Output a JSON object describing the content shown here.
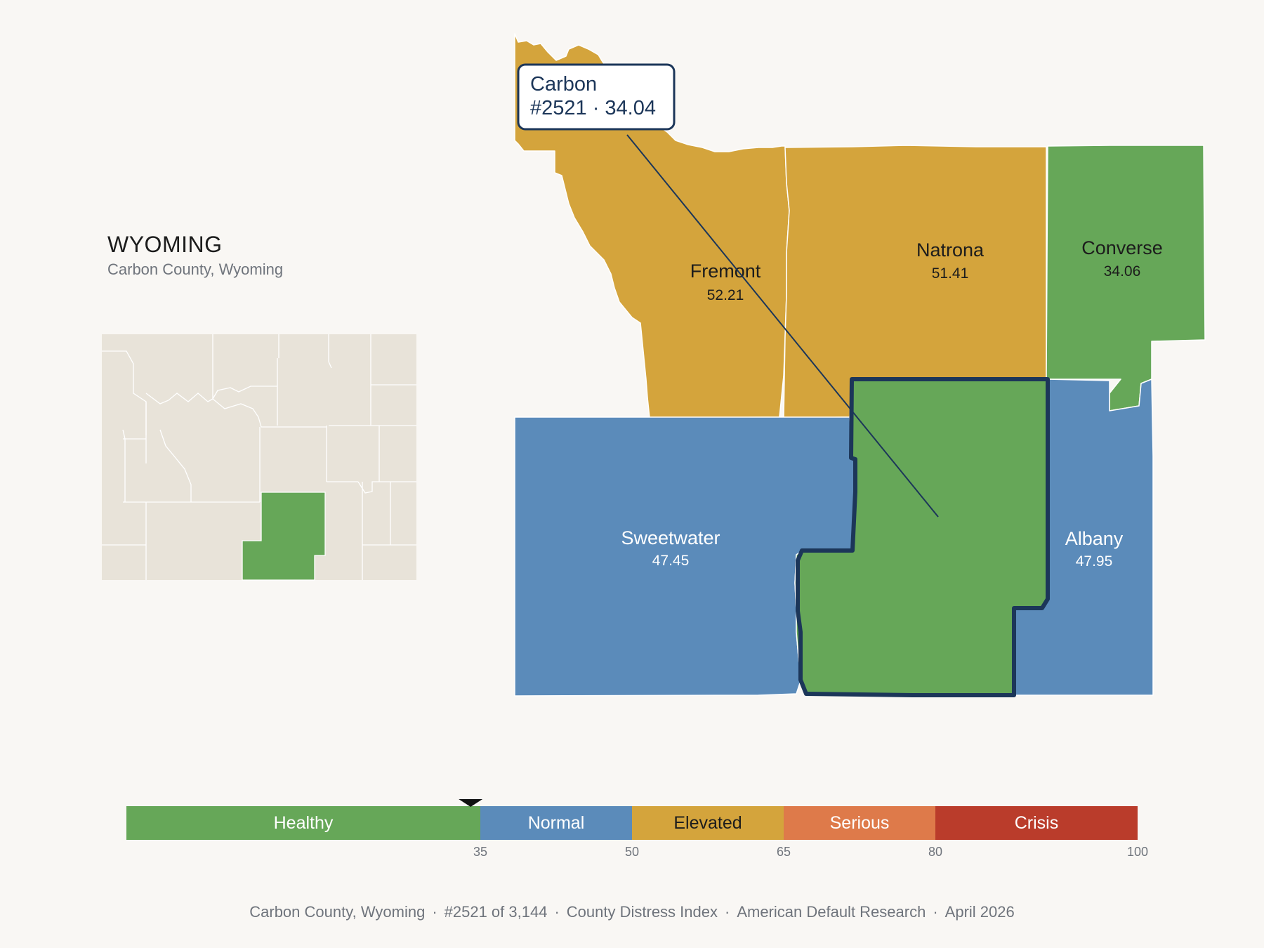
{
  "state": {
    "title": "WYOMING",
    "subtitle": "Carbon County, Wyoming"
  },
  "tooltip": {
    "name": "Carbon",
    "detail": "#2521 · 34.04"
  },
  "counties": [
    {
      "key": "fremont",
      "name": "Fremont",
      "value": "52.21",
      "category": "Elevated"
    },
    {
      "key": "natrona",
      "name": "Natrona",
      "value": "51.41",
      "category": "Elevated"
    },
    {
      "key": "converse",
      "name": "Converse",
      "value": "34.06",
      "category": "Healthy"
    },
    {
      "key": "sweetwater",
      "name": "Sweetwater",
      "value": "47.45",
      "category": "Normal"
    },
    {
      "key": "albany",
      "name": "Albany",
      "value": "47.95",
      "category": "Normal"
    },
    {
      "key": "carbon",
      "name": "Carbon",
      "value": "34.04",
      "category": "Healthy",
      "selected": true
    }
  ],
  "scale": {
    "marker_value": 34.04,
    "min": 0,
    "max": 100,
    "segments": [
      {
        "label": "Healthy",
        "from": 0,
        "to": 35,
        "color": "#66a758"
      },
      {
        "label": "Normal",
        "from": 35,
        "to": 50,
        "color": "#5b8bba"
      },
      {
        "label": "Elevated",
        "from": 50,
        "to": 65,
        "color": "#d4a43c"
      },
      {
        "label": "Serious",
        "from": 65,
        "to": 80,
        "color": "#de7a4a"
      },
      {
        "label": "Crisis",
        "from": 80,
        "to": 100,
        "color": "#ba3c2b"
      }
    ],
    "ticks": [
      "35",
      "50",
      "65",
      "80",
      "100"
    ]
  },
  "colors": {
    "healthy": "#66a758",
    "normal": "#5b8bba",
    "elevated": "#d4a43c",
    "highlight_outline": "#1c3659",
    "inset_fill": "#e8e3d9"
  },
  "footer": {
    "county": "Carbon County, Wyoming",
    "rank": "#2521 of 3,144",
    "index": "County Distress Index",
    "source": "American Default Research",
    "date": "April 2026",
    "separator": "·"
  }
}
